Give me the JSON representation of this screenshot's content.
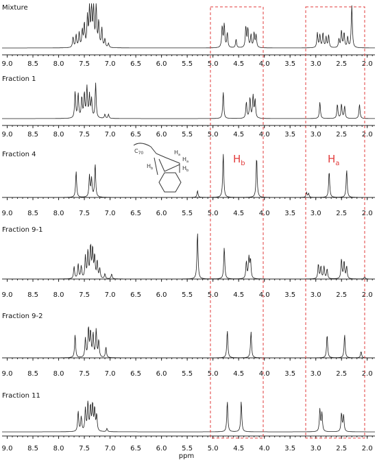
{
  "figure": {
    "xlabel": "ppm"
  },
  "chart_data": {
    "type": "line",
    "xlim": [
      9.1,
      1.85
    ],
    "xticks": [
      "9.0",
      "8.5",
      "8.0",
      "7.5",
      "7.0",
      "6.5",
      "6.0",
      "5.5",
      "5.0",
      "4.5",
      "4.0",
      "3.5",
      "3.0",
      "2.5",
      "2.0"
    ],
    "xlabel": "ppm",
    "panels": [
      {
        "name": "Mixture",
        "peaks": [
          [
            7.72,
            0.25
          ],
          [
            7.66,
            0.3
          ],
          [
            7.6,
            0.35
          ],
          [
            7.54,
            0.4
          ],
          [
            7.5,
            0.55
          ],
          [
            7.44,
            0.7
          ],
          [
            7.4,
            0.9
          ],
          [
            7.36,
            1.0
          ],
          [
            7.32,
            0.95
          ],
          [
            7.27,
            1.0
          ],
          [
            7.22,
            0.6
          ],
          [
            7.16,
            0.45
          ],
          [
            7.1,
            0.2
          ],
          [
            7.03,
            0.1
          ],
          [
            4.82,
            0.5
          ],
          [
            4.78,
            0.55
          ],
          [
            4.72,
            0.35
          ],
          [
            4.55,
            0.2
          ],
          [
            4.36,
            0.5
          ],
          [
            4.32,
            0.45
          ],
          [
            4.26,
            0.3
          ],
          [
            4.2,
            0.35
          ],
          [
            4.16,
            0.3
          ],
          [
            2.97,
            0.35
          ],
          [
            2.92,
            0.3
          ],
          [
            2.86,
            0.35
          ],
          [
            2.8,
            0.25
          ],
          [
            2.75,
            0.3
          ],
          [
            2.55,
            0.2
          ],
          [
            2.5,
            0.4
          ],
          [
            2.45,
            0.35
          ],
          [
            2.38,
            0.25
          ],
          [
            2.3,
            1.0
          ]
        ]
      },
      {
        "name": "Fraction 1",
        "peaks": [
          [
            7.68,
            0.65
          ],
          [
            7.62,
            0.6
          ],
          [
            7.55,
            0.5
          ],
          [
            7.5,
            0.6
          ],
          [
            7.45,
            0.75
          ],
          [
            7.4,
            0.55
          ],
          [
            7.36,
            0.45
          ],
          [
            7.28,
            0.85
          ],
          [
            7.1,
            0.1
          ],
          [
            7.03,
            0.1
          ],
          [
            4.8,
            0.65
          ],
          [
            4.35,
            0.4
          ],
          [
            4.28,
            0.5
          ],
          [
            4.22,
            0.55
          ],
          [
            4.18,
            0.45
          ],
          [
            2.92,
            0.4
          ],
          [
            2.58,
            0.35
          ],
          [
            2.5,
            0.35
          ],
          [
            2.44,
            0.3
          ],
          [
            2.15,
            0.35
          ]
        ]
      },
      {
        "name": "Fraction 4",
        "peaks": [
          [
            7.66,
            0.55
          ],
          [
            7.4,
            0.45
          ],
          [
            7.36,
            0.38
          ],
          [
            7.29,
            0.7
          ],
          [
            5.3,
            0.14
          ],
          [
            4.8,
            0.92
          ],
          [
            4.15,
            0.85
          ],
          [
            3.18,
            0.1
          ],
          [
            3.14,
            0.08
          ],
          [
            2.74,
            0.55
          ],
          [
            2.4,
            0.58
          ]
        ]
      },
      {
        "name": "Fraction 9-1",
        "peaks": [
          [
            7.7,
            0.25
          ],
          [
            7.62,
            0.3
          ],
          [
            7.56,
            0.25
          ],
          [
            7.48,
            0.45
          ],
          [
            7.43,
            0.55
          ],
          [
            7.38,
            0.65
          ],
          [
            7.34,
            0.6
          ],
          [
            7.3,
            0.45
          ],
          [
            7.25,
            0.35
          ],
          [
            7.2,
            0.2
          ],
          [
            7.1,
            0.1
          ],
          [
            6.97,
            0.1
          ],
          [
            5.3,
            0.95
          ],
          [
            4.78,
            0.65
          ],
          [
            4.35,
            0.35
          ],
          [
            4.3,
            0.42
          ],
          [
            4.27,
            0.38
          ],
          [
            2.95,
            0.3
          ],
          [
            2.9,
            0.25
          ],
          [
            2.84,
            0.25
          ],
          [
            2.78,
            0.2
          ],
          [
            2.5,
            0.4
          ],
          [
            2.45,
            0.35
          ],
          [
            2.4,
            0.25
          ],
          [
            2.05,
            0.05
          ]
        ]
      },
      {
        "name": "Fraction 9-2",
        "peaks": [
          [
            7.68,
            0.55
          ],
          [
            7.48,
            0.45
          ],
          [
            7.42,
            0.7
          ],
          [
            7.38,
            0.6
          ],
          [
            7.33,
            0.55
          ],
          [
            7.27,
            0.65
          ],
          [
            7.22,
            0.4
          ],
          [
            7.08,
            0.25
          ],
          [
            4.72,
            0.65
          ],
          [
            4.26,
            0.62
          ],
          [
            2.78,
            0.55
          ],
          [
            2.44,
            0.55
          ],
          [
            2.12,
            0.15
          ]
        ]
      },
      {
        "name": "Fraction 11",
        "peaks": [
          [
            7.62,
            0.5
          ],
          [
            7.56,
            0.35
          ],
          [
            7.48,
            0.55
          ],
          [
            7.43,
            0.7
          ],
          [
            7.38,
            0.6
          ],
          [
            7.34,
            0.65
          ],
          [
            7.3,
            0.55
          ],
          [
            7.26,
            0.4
          ],
          [
            7.06,
            0.08
          ],
          [
            4.72,
            0.75
          ],
          [
            4.45,
            0.75
          ],
          [
            2.92,
            0.55
          ],
          [
            2.88,
            0.45
          ],
          [
            2.5,
            0.45
          ],
          [
            2.46,
            0.4
          ]
        ]
      }
    ],
    "regions": [
      {
        "label": "H_b",
        "from": 5.03,
        "to": 3.95
      },
      {
        "label": "H_a",
        "from": 3.13,
        "to": 1.88
      }
    ],
    "annotations": {
      "Hb": {
        "main": "H",
        "sub": "b"
      },
      "Ha": {
        "main": "H",
        "sub": "a"
      },
      "inset": {
        "fullerene": "C70",
        "proton_a": "Ha",
        "proton_b": "Hb"
      }
    }
  },
  "colors": {
    "trace": "#1a1a1a",
    "highlight": "#e23b3b",
    "axis": "#222222"
  }
}
